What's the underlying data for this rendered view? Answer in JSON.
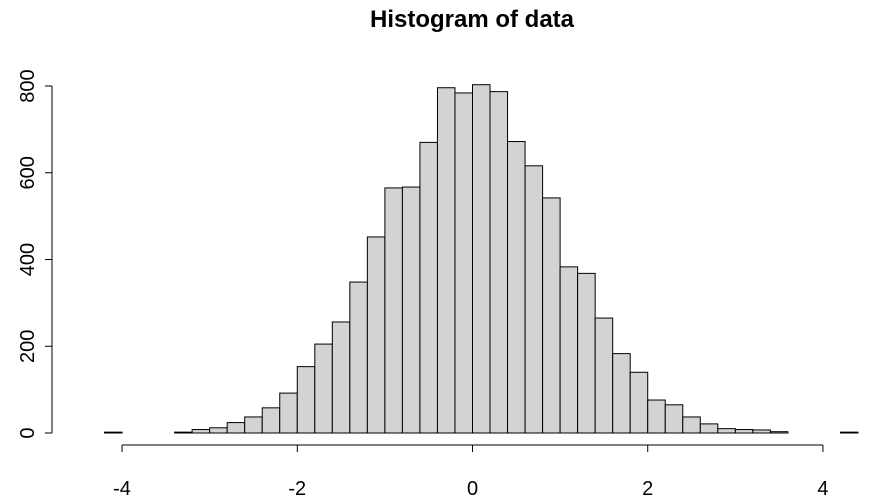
{
  "chart_data": {
    "type": "bar",
    "title": "Histogram of data",
    "xlabel": "",
    "ylabel": "",
    "bin_width": 0.2,
    "xlim": [
      -4.4,
      4.4
    ],
    "ylim": [
      0,
      820
    ],
    "x_ticks": [
      -4,
      -2,
      0,
      2,
      4
    ],
    "x_tick_labels": [
      "-4",
      "-2",
      "0",
      "2",
      "4"
    ],
    "y_ticks": [
      0,
      200,
      400,
      600,
      800
    ],
    "y_tick_labels": [
      "0",
      "200",
      "400",
      "600",
      "800"
    ],
    "grid": false,
    "legend": "none",
    "bar_color": "#d3d3d3",
    "edge_color": "#000000",
    "bins": [
      {
        "start": -4.2,
        "end": -4.0,
        "count": 2
      },
      {
        "start": -4.0,
        "end": -3.8,
        "count": 0
      },
      {
        "start": -3.8,
        "end": -3.6,
        "count": 0
      },
      {
        "start": -3.6,
        "end": -3.4,
        "count": 0
      },
      {
        "start": -3.4,
        "end": -3.2,
        "count": 2
      },
      {
        "start": -3.2,
        "end": -3.0,
        "count": 8
      },
      {
        "start": -3.0,
        "end": -2.8,
        "count": 12
      },
      {
        "start": -2.8,
        "end": -2.6,
        "count": 24
      },
      {
        "start": -2.6,
        "end": -2.4,
        "count": 37
      },
      {
        "start": -2.4,
        "end": -2.2,
        "count": 58
      },
      {
        "start": -2.2,
        "end": -2.0,
        "count": 92
      },
      {
        "start": -2.0,
        "end": -1.8,
        "count": 153
      },
      {
        "start": -1.8,
        "end": -1.6,
        "count": 205
      },
      {
        "start": -1.6,
        "end": -1.4,
        "count": 256
      },
      {
        "start": -1.4,
        "end": -1.2,
        "count": 348
      },
      {
        "start": -1.2,
        "end": -1.0,
        "count": 452
      },
      {
        "start": -1.0,
        "end": -0.8,
        "count": 565
      },
      {
        "start": -0.8,
        "end": -0.6,
        "count": 567
      },
      {
        "start": -0.6,
        "end": -0.4,
        "count": 670
      },
      {
        "start": -0.4,
        "end": -0.2,
        "count": 796
      },
      {
        "start": -0.2,
        "end": 0.0,
        "count": 784
      },
      {
        "start": 0.0,
        "end": 0.2,
        "count": 803
      },
      {
        "start": 0.2,
        "end": 0.4,
        "count": 787
      },
      {
        "start": 0.4,
        "end": 0.6,
        "count": 672
      },
      {
        "start": 0.6,
        "end": 0.8,
        "count": 616
      },
      {
        "start": 0.8,
        "end": 1.0,
        "count": 542
      },
      {
        "start": 1.0,
        "end": 1.2,
        "count": 383
      },
      {
        "start": 1.2,
        "end": 1.4,
        "count": 368
      },
      {
        "start": 1.4,
        "end": 1.6,
        "count": 265
      },
      {
        "start": 1.6,
        "end": 1.8,
        "count": 183
      },
      {
        "start": 1.8,
        "end": 2.0,
        "count": 140
      },
      {
        "start": 2.0,
        "end": 2.2,
        "count": 76
      },
      {
        "start": 2.2,
        "end": 2.4,
        "count": 65
      },
      {
        "start": 2.4,
        "end": 2.6,
        "count": 37
      },
      {
        "start": 2.6,
        "end": 2.8,
        "count": 21
      },
      {
        "start": 2.8,
        "end": 3.0,
        "count": 10
      },
      {
        "start": 3.0,
        "end": 3.2,
        "count": 8
      },
      {
        "start": 3.2,
        "end": 3.4,
        "count": 7
      },
      {
        "start": 3.4,
        "end": 3.6,
        "count": 3
      },
      {
        "start": 3.6,
        "end": 3.8,
        "count": 0
      },
      {
        "start": 3.8,
        "end": 4.0,
        "count": 0
      },
      {
        "start": 4.0,
        "end": 4.2,
        "count": 0
      },
      {
        "start": 4.2,
        "end": 4.4,
        "count": 2
      }
    ]
  }
}
